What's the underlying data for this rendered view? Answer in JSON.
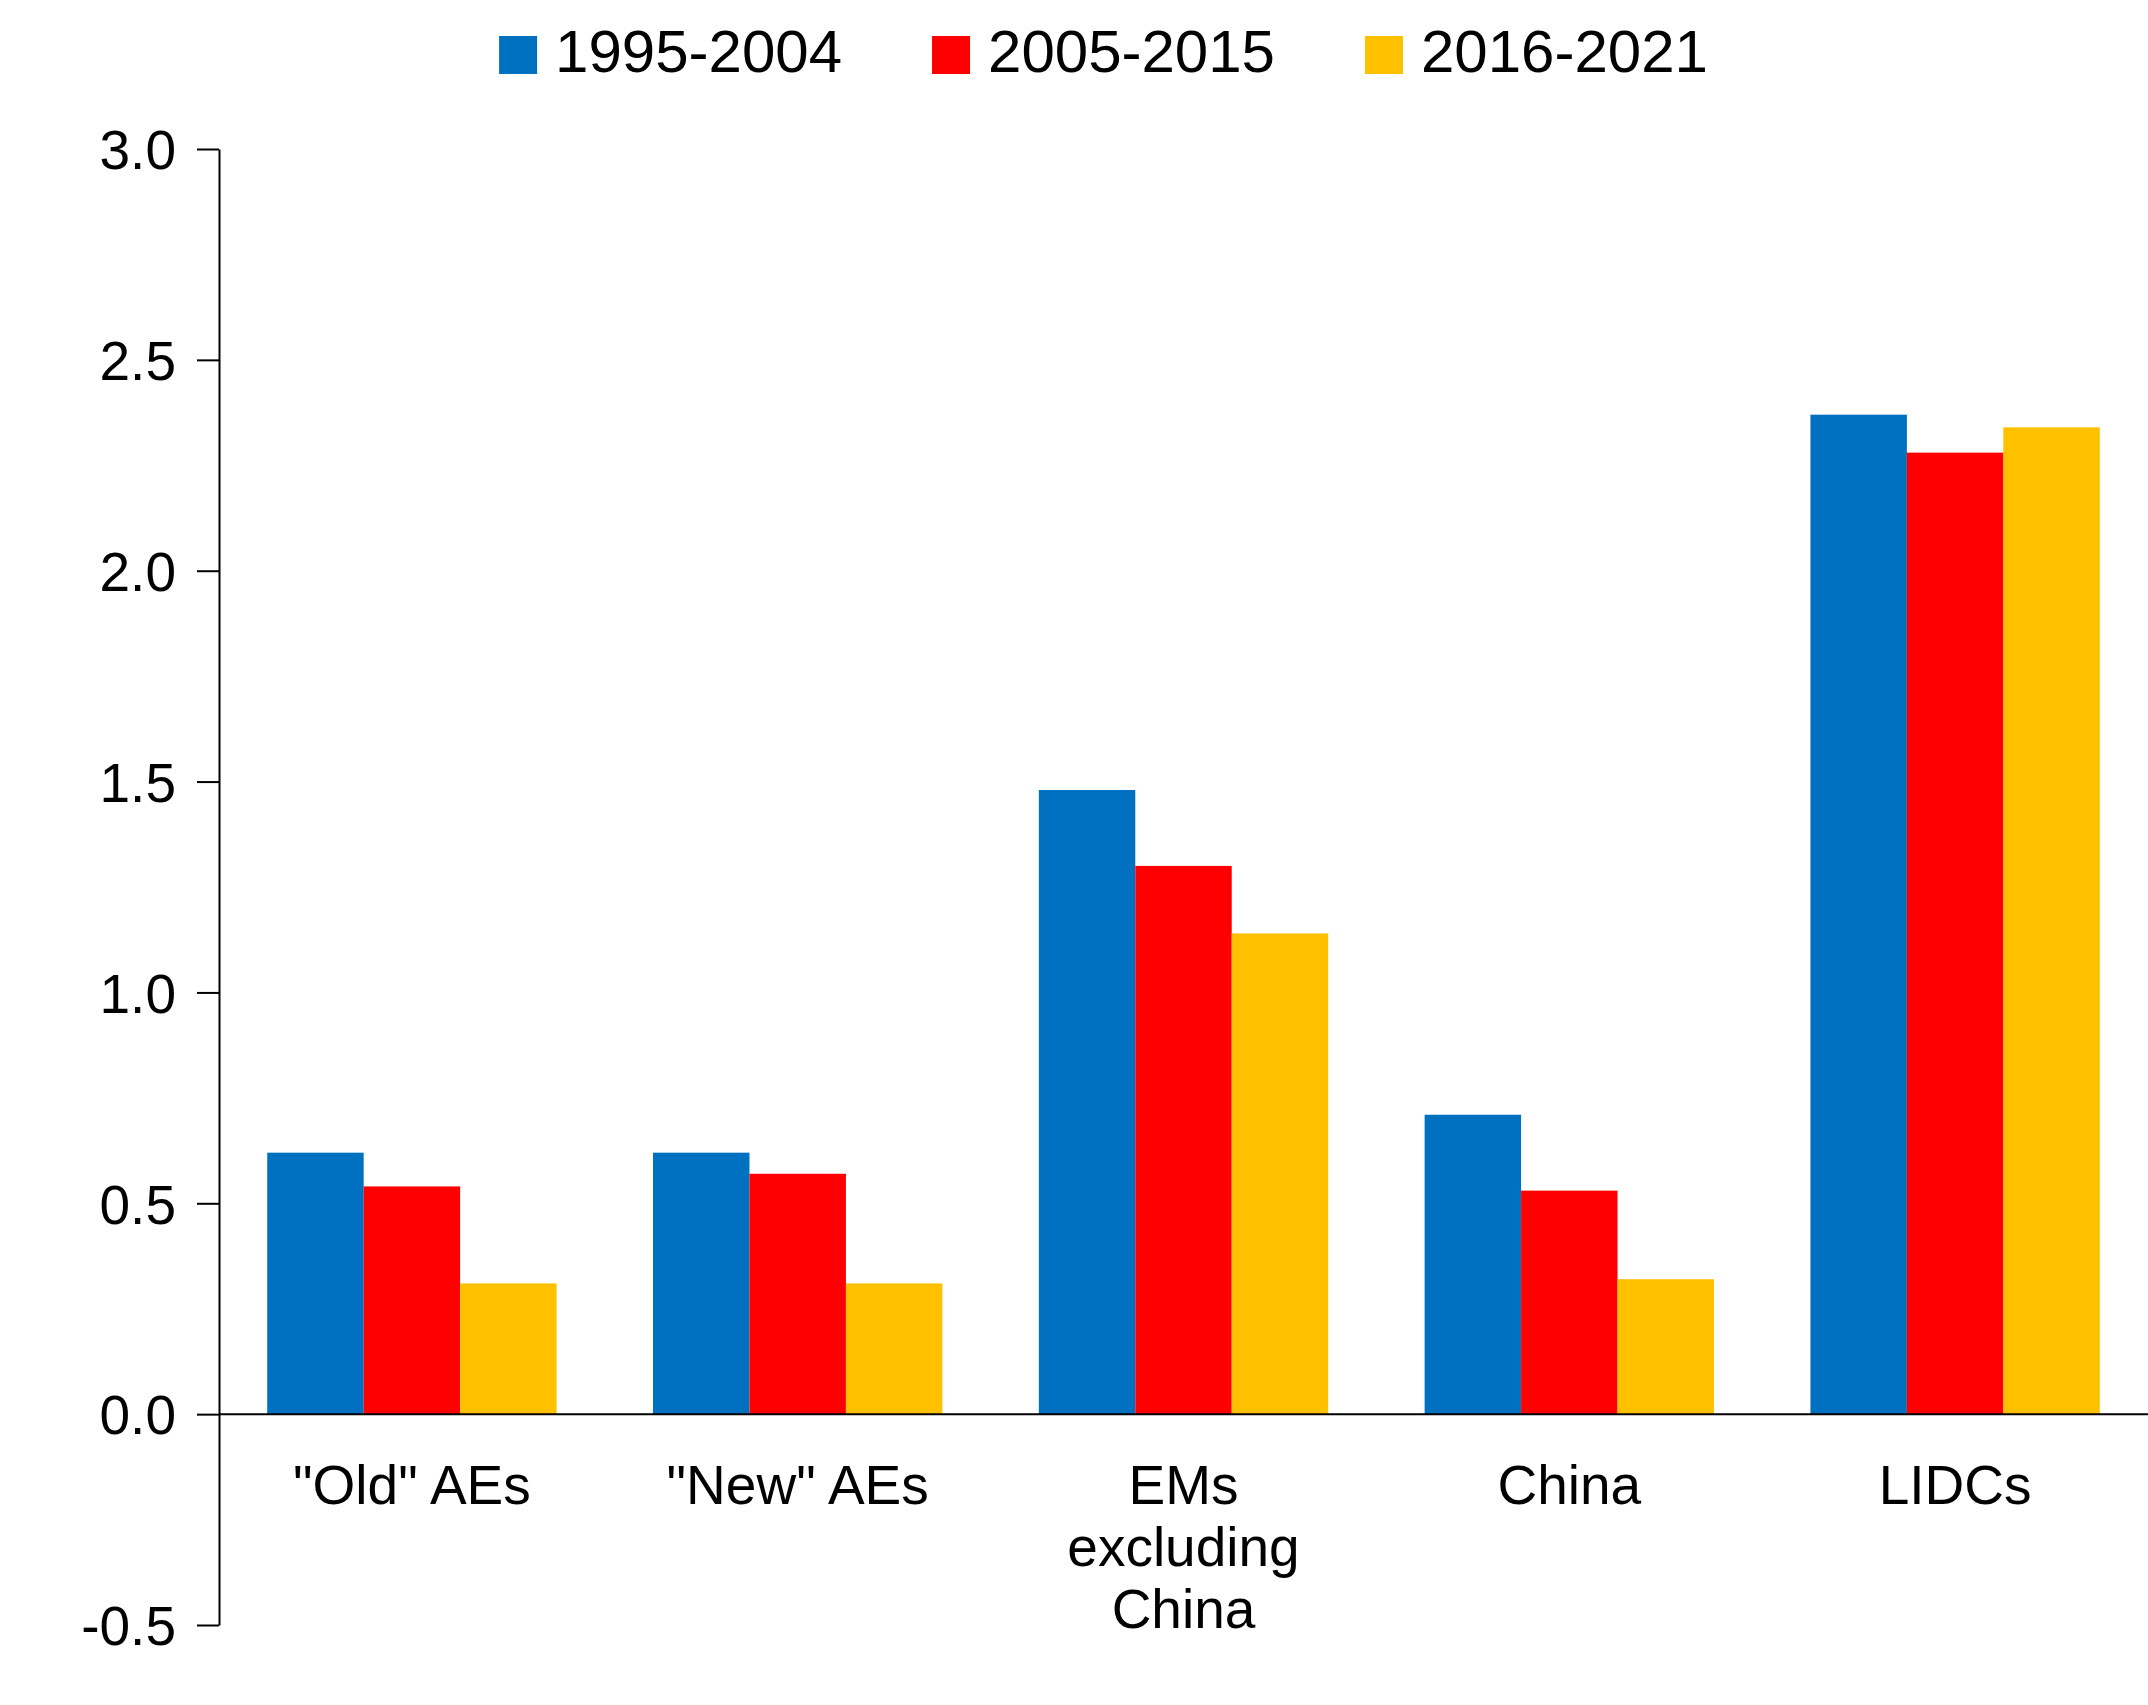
{
  "chart_data": {
    "type": "bar",
    "categories": [
      "\"Old\" AEs",
      "\"New\" AEs",
      "EMs excluding China",
      "China",
      "LIDCs"
    ],
    "series": [
      {
        "name": "1995-2004",
        "color": "#0070c0",
        "values": [
          0.62,
          0.62,
          1.48,
          0.71,
          2.37
        ]
      },
      {
        "name": "2005-2015",
        "color": "#ff0000",
        "values": [
          0.54,
          0.57,
          1.3,
          0.53,
          2.28
        ]
      },
      {
        "name": "2016-2021",
        "color": "#ffc000",
        "values": [
          0.31,
          0.31,
          1.14,
          0.32,
          2.34
        ]
      }
    ],
    "ylim": [
      -0.5,
      3.0
    ],
    "yticks": [
      {
        "value": -0.5,
        "label": "-0.5"
      },
      {
        "value": 0,
        "label": "0.0"
      },
      {
        "value": 0.5,
        "label": "0.5"
      },
      {
        "value": 1,
        "label": "1.0"
      },
      {
        "value": 1.5,
        "label": "1.5"
      },
      {
        "value": 2,
        "label": "2.0"
      },
      {
        "value": 2.5,
        "label": "2.5"
      },
      {
        "value": 3,
        "label": "3.0"
      }
    ],
    "grid": false,
    "legend": "top"
  }
}
